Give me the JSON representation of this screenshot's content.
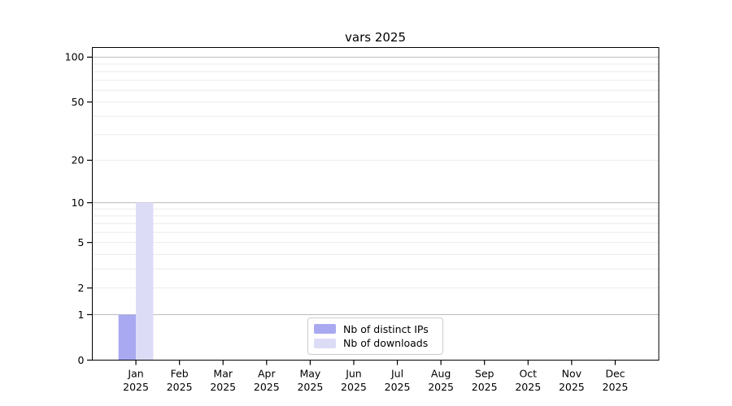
{
  "chart_data": {
    "type": "bar",
    "title": "vars 2025",
    "categories": [
      "Jan",
      "Feb",
      "Mar",
      "Apr",
      "May",
      "Jun",
      "Jul",
      "Aug",
      "Sep",
      "Oct",
      "Nov",
      "Dec"
    ],
    "x_tick_year": "2025",
    "series": [
      {
        "name": "Nb of distinct IPs",
        "color": "#a9a9f1",
        "values": [
          1,
          0,
          0,
          0,
          0,
          0,
          0,
          0,
          0,
          0,
          0,
          0
        ]
      },
      {
        "name": "Nb of downloads",
        "color": "#dcdcf7",
        "values": [
          10,
          0,
          0,
          0,
          0,
          0,
          0,
          0,
          0,
          0,
          0,
          0
        ]
      }
    ],
    "xlabel": "",
    "ylabel": "",
    "yscale": "log1p",
    "ylim": [
      0,
      116
    ],
    "y_ticks": [
      0,
      1,
      2,
      5,
      10,
      20,
      50,
      100
    ],
    "y_major_gridlines": [
      1,
      10,
      100
    ],
    "y_minor_gridlines": [
      2,
      3,
      4,
      5,
      6,
      7,
      8,
      9,
      20,
      30,
      40,
      50,
      60,
      70,
      80,
      90
    ],
    "grid": true,
    "legend_position": "lower center",
    "colors": {
      "major_grid": "#bbbbbb",
      "minor_grid": "#ebebeb",
      "axis": "#000000",
      "background": "#ffffff"
    }
  }
}
